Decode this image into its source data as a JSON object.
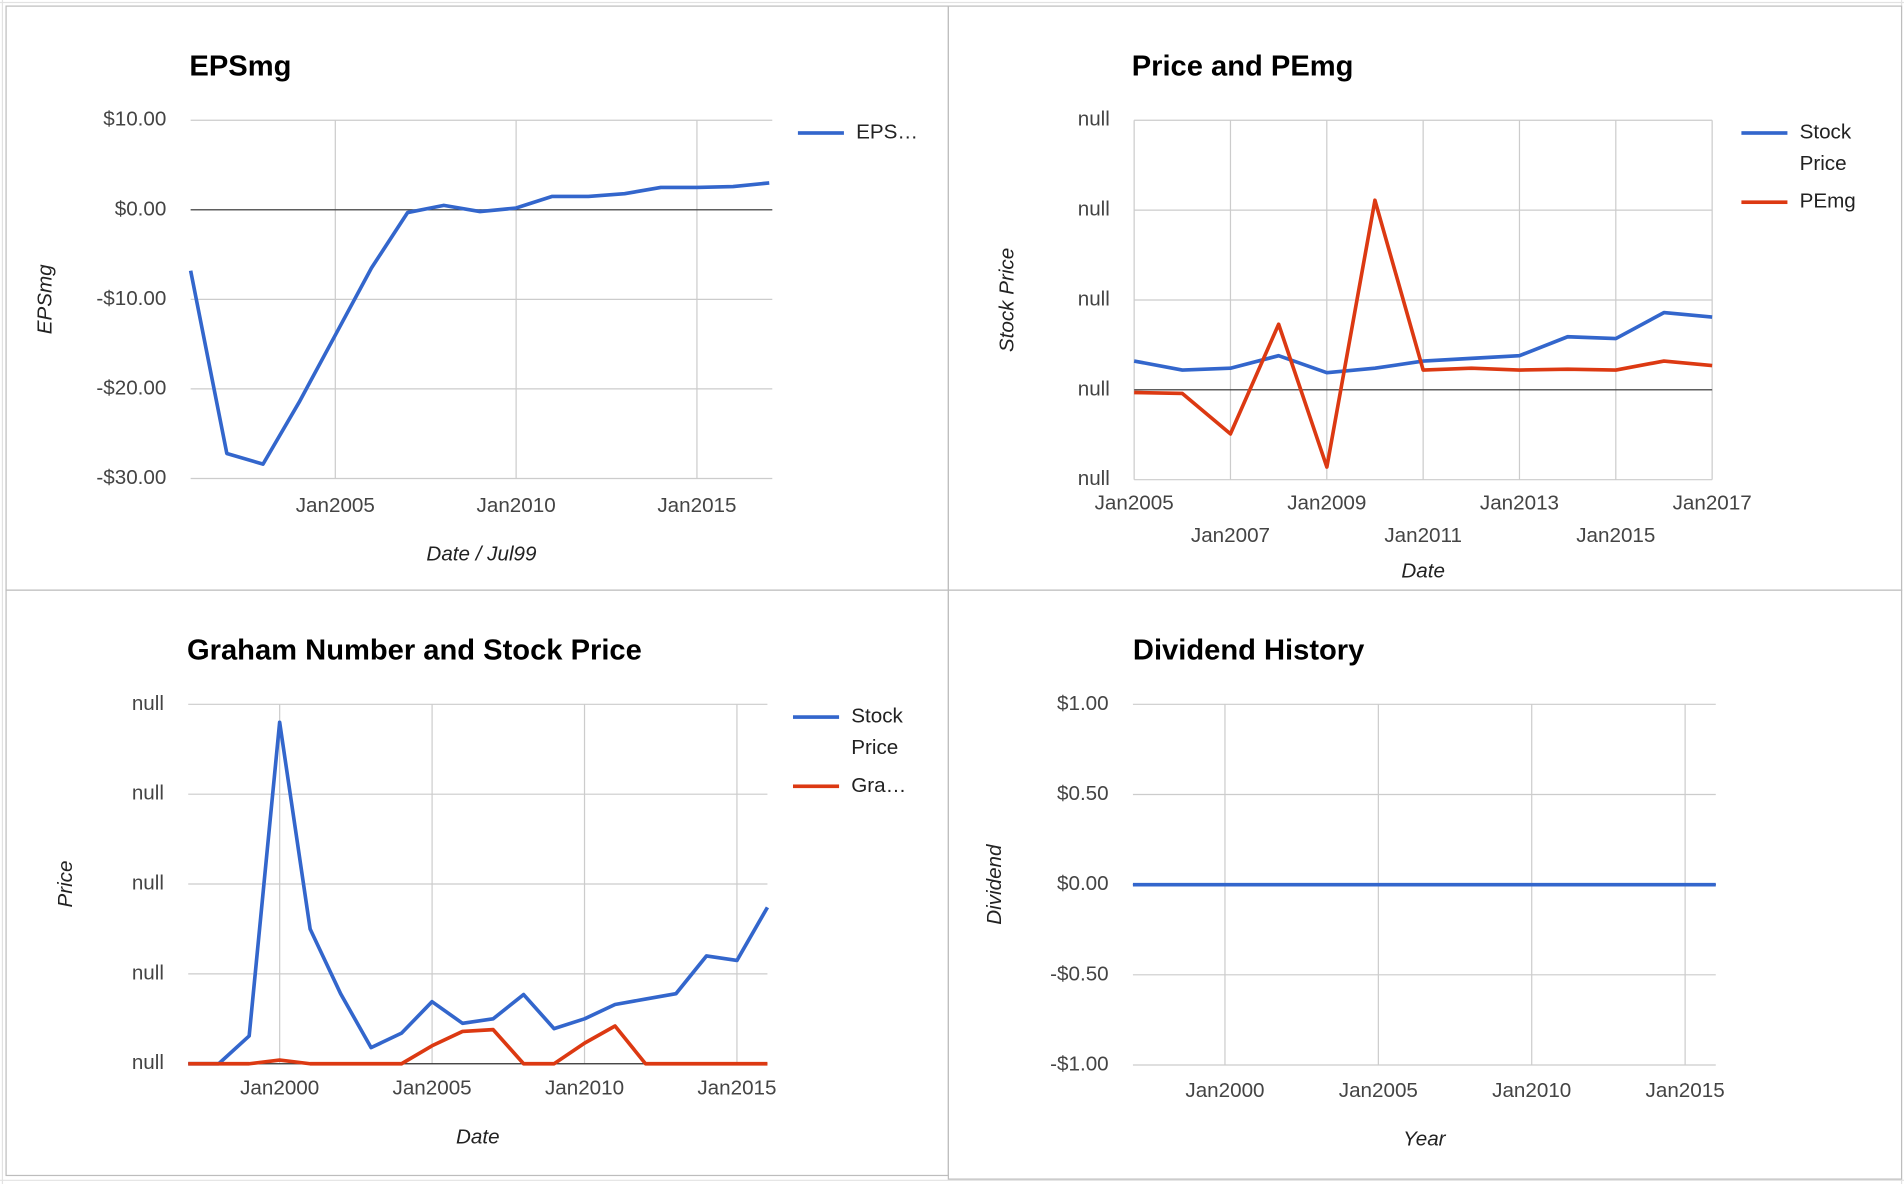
{
  "chart_data": [
    {
      "type": "line",
      "title": "EPSmg",
      "x_label": "Date / Jul99",
      "y_label": "EPSmg",
      "x": [
        "2001-01",
        "2002-01",
        "2003-01",
        "2004-01",
        "2005-01",
        "2006-01",
        "2007-01",
        "2008-01",
        "2009-01",
        "2010-01",
        "2011-01",
        "2012-01",
        "2013-01",
        "2014-01",
        "2015-01",
        "2016-01",
        "2017-01"
      ],
      "series": [
        {
          "name": "EPS…",
          "color": "#3366cc",
          "values": [
            -6.8,
            -27.2,
            -28.4,
            -21.5,
            -14,
            -6.5,
            -0.3,
            0.5,
            -0.2,
            0.2,
            1.5,
            1.5,
            1.8,
            2.5,
            2.5,
            2.6,
            3.0
          ]
        }
      ],
      "xlim": [
        "2001-01",
        "2017-02"
      ],
      "xticks": [
        {
          "value": "2005-01",
          "label": "Jan2005"
        },
        {
          "value": "2010-01",
          "label": "Jan2010"
        },
        {
          "value": "2015-01",
          "label": "Jan2015"
        }
      ],
      "ylim": [
        -30,
        10
      ],
      "yticks": [
        {
          "value": -30,
          "label": "-$30.00"
        },
        {
          "value": -20,
          "label": "-$20.00"
        },
        {
          "value": -10,
          "label": "-$10.00"
        },
        {
          "value": 0,
          "label": "$0.00"
        },
        {
          "value": 10,
          "label": "$10.00"
        }
      ],
      "grid": true
    },
    {
      "type": "line",
      "title": "Price and PEmg",
      "x_label": "Date",
      "y_label": "Stock Price",
      "x": [
        "2005-01",
        "2006-01",
        "2007-01",
        "2008-01",
        "2009-01",
        "2010-01",
        "2011-01",
        "2012-01",
        "2013-01",
        "2014-01",
        "2015-01",
        "2016-01",
        "2017-01"
      ],
      "series": [
        {
          "name": "Stock Price",
          "color": "#3366cc",
          "values": [
            0.32,
            0.22,
            0.24,
            0.38,
            0.19,
            0.24,
            0.32,
            0.35,
            0.38,
            0.59,
            0.57,
            0.86,
            0.81
          ]
        },
        {
          "name": "PEmg",
          "color": "#dc3912",
          "values": [
            -0.03,
            -0.04,
            -0.49,
            0.73,
            -0.86,
            2.11,
            0.22,
            0.24,
            0.22,
            0.23,
            0.22,
            0.32,
            0.27
          ]
        }
      ],
      "xlim": [
        "2005-01",
        "2017-01"
      ],
      "xticks": [
        {
          "value": "2005-01",
          "label": "Jan2005"
        },
        {
          "value": "2007-01",
          "label": "Jan2007"
        },
        {
          "value": "2009-01",
          "label": "Jan2009"
        },
        {
          "value": "2011-01",
          "label": "Jan2011"
        },
        {
          "value": "2013-01",
          "label": "Jan2013"
        },
        {
          "value": "2015-01",
          "label": "Jan2015"
        },
        {
          "value": "2017-01",
          "label": "Jan2017"
        }
      ],
      "ylim": [
        -1,
        3
      ],
      "yticks": [
        {
          "value": -1,
          "label": "null"
        },
        {
          "value": 0,
          "label": "null"
        },
        {
          "value": 1,
          "label": "null"
        },
        {
          "value": 2,
          "label": "null"
        },
        {
          "value": 3,
          "label": "null"
        }
      ],
      "grid": true
    },
    {
      "type": "line",
      "title": "Graham Number and Stock Price",
      "x_label": "Date",
      "y_label": "Price",
      "x": [
        "1997-01",
        "1998-01",
        "1999-01",
        "2000-01",
        "2001-01",
        "2002-01",
        "2003-01",
        "2004-01",
        "2005-01",
        "2006-01",
        "2007-01",
        "2008-01",
        "2009-01",
        "2010-01",
        "2011-01",
        "2012-01",
        "2013-01",
        "2014-01",
        "2015-01",
        "2016-01"
      ],
      "series": [
        {
          "name": "Stock Price",
          "color": "#3366cc",
          "values": [
            0,
            0,
            0.31,
            3.8,
            1.5,
            0.78,
            0.18,
            0.34,
            0.69,
            0.45,
            0.5,
            0.77,
            0.39,
            0.5,
            0.66,
            0.72,
            0.78,
            1.2,
            1.15,
            1.74
          ]
        },
        {
          "name": "Gra…",
          "color": "#dc3912",
          "values": [
            0,
            0,
            0,
            0.04,
            0,
            0,
            0,
            0,
            0.2,
            0.36,
            0.38,
            0,
            0,
            0.23,
            0.42,
            0,
            0,
            0,
            0,
            0
          ]
        }
      ],
      "xlim": [
        "1997-01",
        "2016-01"
      ],
      "xticks": [
        {
          "value": "2000-01",
          "label": "Jan2000"
        },
        {
          "value": "2005-01",
          "label": "Jan2005"
        },
        {
          "value": "2010-01",
          "label": "Jan2010"
        },
        {
          "value": "2015-01",
          "label": "Jan2015"
        }
      ],
      "ylim": [
        0,
        4
      ],
      "yticks": [
        {
          "value": 0,
          "label": "null"
        },
        {
          "value": 1,
          "label": "null"
        },
        {
          "value": 2,
          "label": "null"
        },
        {
          "value": 3,
          "label": "null"
        },
        {
          "value": 4,
          "label": "null"
        }
      ],
      "grid": true
    },
    {
      "type": "line",
      "title": "Dividend History",
      "x_label": "Year",
      "y_label": "Dividend",
      "x": [
        "1997-01",
        "1998-01",
        "1999-01",
        "2000-01",
        "2001-01",
        "2002-01",
        "2003-01",
        "2004-01",
        "2005-01",
        "2006-01",
        "2007-01",
        "2008-01",
        "2009-01",
        "2010-01",
        "2011-01",
        "2012-01",
        "2013-01",
        "2014-01",
        "2015-01",
        "2016-01"
      ],
      "series": [
        {
          "color": "#3366cc",
          "values": [
            0,
            0,
            0,
            0,
            0,
            0,
            0,
            0,
            0,
            0,
            0,
            0,
            0,
            0,
            0,
            0,
            0,
            0,
            0,
            0
          ]
        }
      ],
      "xlim": [
        "1997-01",
        "2016-01"
      ],
      "xticks": [
        {
          "value": "2000-01",
          "label": "Jan2000"
        },
        {
          "value": "2005-01",
          "label": "Jan2005"
        },
        {
          "value": "2010-01",
          "label": "Jan2010"
        },
        {
          "value": "2015-01",
          "label": "Jan2015"
        }
      ],
      "ylim": [
        -1,
        1
      ],
      "yticks": [
        {
          "value": -1,
          "label": "-$1.00"
        },
        {
          "value": -0.5,
          "label": "-$0.50"
        },
        {
          "value": 0,
          "label": "$0.00"
        },
        {
          "value": 0.5,
          "label": "$0.50"
        },
        {
          "value": 1,
          "label": "$1.00"
        }
      ],
      "grid": true
    }
  ]
}
